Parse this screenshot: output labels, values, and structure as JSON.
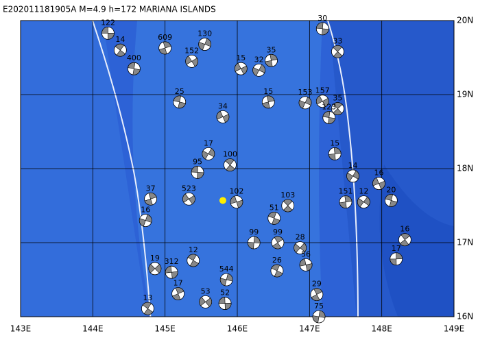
{
  "map": {
    "title": "E202011181905A M=4.9 h=172 MARIANA ISLANDS",
    "xlim": [
      143,
      149
    ],
    "ylim": [
      16,
      20
    ],
    "xticks": [
      {
        "value": 143,
        "label": "143E"
      },
      {
        "value": 144,
        "label": "144E"
      },
      {
        "value": 145,
        "label": "145E"
      },
      {
        "value": 146,
        "label": "146E"
      },
      {
        "value": 147,
        "label": "147E"
      },
      {
        "value": 148,
        "label": "148E"
      },
      {
        "value": 149,
        "label": "149E"
      }
    ],
    "yticks": [
      {
        "value": 16,
        "label": "16N"
      },
      {
        "value": 17,
        "label": "17N"
      },
      {
        "value": 18,
        "label": "18N"
      },
      {
        "value": 19,
        "label": "19N"
      },
      {
        "value": 20,
        "label": "20N"
      }
    ],
    "epicenter": {
      "lon": 145.8,
      "lat": 17.57
    },
    "events": [
      {
        "lon": 144.21,
        "lat": 19.83,
        "depth": 122
      },
      {
        "lon": 144.38,
        "lat": 19.6,
        "depth": 14
      },
      {
        "lon": 145.0,
        "lat": 19.63,
        "depth": 609
      },
      {
        "lon": 145.55,
        "lat": 19.68,
        "depth": 130
      },
      {
        "lon": 145.37,
        "lat": 19.45,
        "depth": 152
      },
      {
        "lon": 147.18,
        "lat": 19.89,
        "depth": 30
      },
      {
        "lon": 147.39,
        "lat": 19.58,
        "depth": 33
      },
      {
        "lon": 146.47,
        "lat": 19.46,
        "depth": 35
      },
      {
        "lon": 146.3,
        "lat": 19.33,
        "depth": 32
      },
      {
        "lon": 146.05,
        "lat": 19.35,
        "depth": 15
      },
      {
        "lon": 144.57,
        "lat": 19.35,
        "depth": 400
      },
      {
        "lon": 147.39,
        "lat": 18.81,
        "depth": 35
      },
      {
        "lon": 147.35,
        "lat": 18.2,
        "depth": 15
      },
      {
        "lon": 147.6,
        "lat": 17.9,
        "depth": 14
      },
      {
        "lon": 147.96,
        "lat": 17.8,
        "depth": 16
      },
      {
        "lon": 148.13,
        "lat": 17.57,
        "depth": 20
      },
      {
        "lon": 148.32,
        "lat": 17.04,
        "depth": 16
      },
      {
        "lon": 148.2,
        "lat": 16.78,
        "depth": 17
      },
      {
        "lon": 147.75,
        "lat": 17.55,
        "depth": 12
      },
      {
        "lon": 145.99,
        "lat": 17.55,
        "depth": 102
      },
      {
        "lon": 146.51,
        "lat": 17.33,
        "depth": 51
      },
      {
        "lon": 146.56,
        "lat": 17.0,
        "depth": 99
      },
      {
        "lon": 146.23,
        "lat": 17.0,
        "depth": 99
      },
      {
        "lon": 146.87,
        "lat": 16.93,
        "depth": 28
      },
      {
        "lon": 146.95,
        "lat": 16.7,
        "depth": 56
      },
      {
        "lon": 146.55,
        "lat": 16.62,
        "depth": 26
      },
      {
        "lon": 147.1,
        "lat": 16.3,
        "depth": 29
      },
      {
        "lon": 147.13,
        "lat": 16.0,
        "depth": 75
      },
      {
        "lon": 144.86,
        "lat": 16.65,
        "depth": 19
      },
      {
        "lon": 145.09,
        "lat": 16.6,
        "depth": 312
      },
      {
        "lon": 145.39,
        "lat": 16.76,
        "depth": 12
      },
      {
        "lon": 145.18,
        "lat": 16.31,
        "depth": 17
      },
      {
        "lon": 145.85,
        "lat": 16.5,
        "depth": 544
      },
      {
        "lon": 145.56,
        "lat": 16.2,
        "depth": 53
      },
      {
        "lon": 145.83,
        "lat": 16.18,
        "depth": 52
      },
      {
        "lon": 144.76,
        "lat": 16.11,
        "depth": 13
      },
      {
        "lon": 144.8,
        "lat": 17.59,
        "depth": 37
      },
      {
        "lon": 144.73,
        "lat": 17.3,
        "depth": 16
      },
      {
        "lon": 145.33,
        "lat": 17.59,
        "depth": 523
      },
      {
        "lon": 145.45,
        "lat": 17.95,
        "depth": 95
      },
      {
        "lon": 145.9,
        "lat": 18.05,
        "depth": 100
      },
      {
        "lon": 146.43,
        "lat": 18.9,
        "depth": 15
      },
      {
        "lon": 146.94,
        "lat": 18.89,
        "depth": 153
      },
      {
        "lon": 147.18,
        "lat": 18.91,
        "depth": 157
      },
      {
        "lon": 147.27,
        "lat": 18.69,
        "depth": 123
      },
      {
        "lon": 146.7,
        "lat": 17.5,
        "depth": 103
      },
      {
        "lon": 147.5,
        "lat": 17.55,
        "depth": 151
      },
      {
        "lon": 145.6,
        "lat": 18.2,
        "depth": 17
      },
      {
        "lon": 145.8,
        "lat": 18.7,
        "depth": 34
      },
      {
        "lon": 145.2,
        "lat": 18.9,
        "depth": 25
      }
    ]
  }
}
